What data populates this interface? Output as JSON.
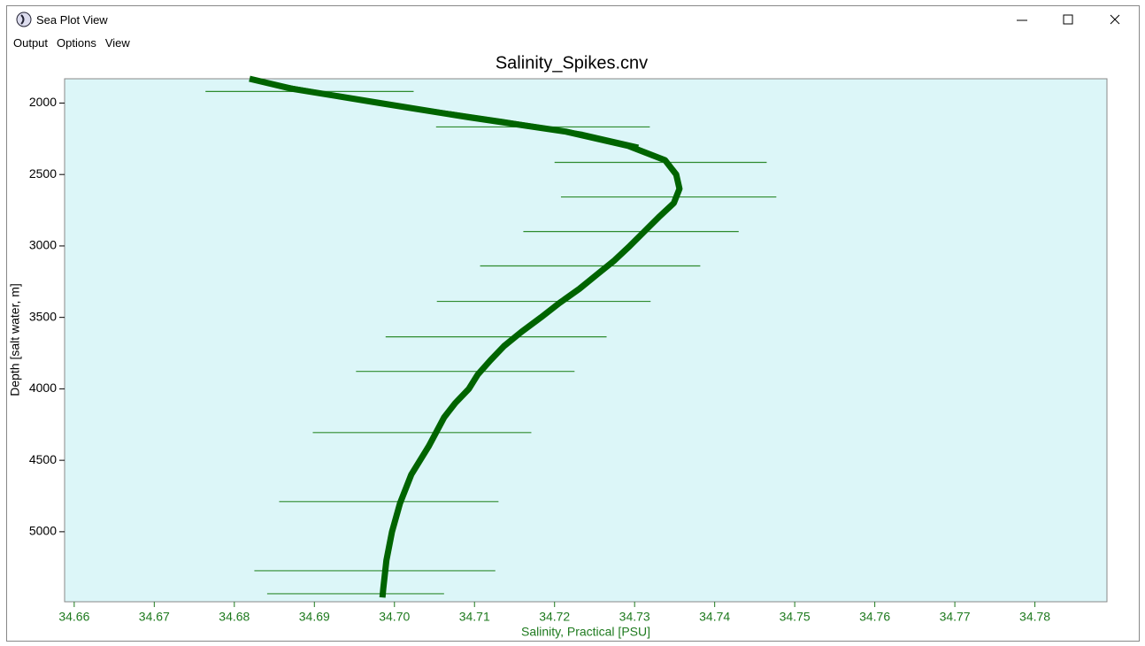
{
  "window": {
    "title": "Sea Plot View",
    "menu": [
      "Output",
      "Options",
      "View"
    ]
  },
  "chart_data": {
    "type": "line",
    "title": "Salinity_Spikes.cnv",
    "x_label": "Salinity, Practical [PSU]",
    "y_label": "Depth [salt water, m]",
    "xlim": [
      34.6588,
      34.789
    ],
    "ylim": [
      1830,
      5490
    ],
    "y_reversed": true,
    "xticks": [
      34.66,
      34.67,
      34.68,
      34.69,
      {
        "value": 34.7,
        "label": "34.70"
      },
      34.71,
      34.72,
      34.73,
      34.74,
      34.75,
      34.76,
      34.77,
      34.78
    ],
    "yticks": [
      2000,
      2500,
      3000,
      3500,
      4000,
      4500,
      5000
    ],
    "background": "#dcf6f8",
    "series": [
      {
        "color": "#006400",
        "x": [
          34.6819,
          34.6872,
          34.6982,
          34.7093,
          34.7214,
          34.7292,
          34.7338,
          34.7352,
          34.7356,
          34.7349,
          34.733,
          34.7312,
          34.7294,
          34.7275,
          34.7253,
          34.7231,
          34.7206,
          34.7183,
          34.7159,
          34.7137,
          34.712,
          34.7104,
          34.7093,
          34.7076,
          34.7062,
          34.7043,
          34.7021,
          34.7007,
          34.6997,
          34.699,
          34.6986,
          34.6985
        ],
        "values": [
          1830,
          1900,
          2000,
          2100,
          2200,
          2300,
          2400,
          2500,
          2600,
          2700,
          2800,
          2900,
          3000,
          3100,
          3200,
          3300,
          3400,
          3500,
          3600,
          3700,
          3800,
          3900,
          4000,
          4100,
          4200,
          4400,
          4600,
          4800,
          5000,
          5200,
          5400,
          5460
        ]
      },
      {
        "color": "#006400",
        "x": [
          34.6825,
          34.6905,
          34.7025,
          34.7135,
          34.7235,
          34.7305
        ],
        "values": [
          1840,
          1920,
          2030,
          2120,
          2210,
          2300
        ]
      }
    ],
    "spikes": {
      "color": "#2e8b2e",
      "depth": [
        1919,
        2167,
        2415,
        2657,
        2899,
        3140,
        3388,
        3636,
        3878,
        4306,
        4789,
        5273,
        5434
      ],
      "x_min": [
        34.6764,
        34.7052,
        34.72,
        34.7208,
        34.7161,
        34.7107,
        34.7053,
        34.6989,
        34.6952,
        34.6898,
        34.6856,
        34.6825,
        34.6841
      ],
      "x_max": [
        34.7024,
        34.7319,
        34.7465,
        34.7477,
        34.743,
        34.7382,
        34.732,
        34.7265,
        34.7225,
        34.7171,
        34.713,
        34.7126,
        34.7062
      ]
    }
  }
}
